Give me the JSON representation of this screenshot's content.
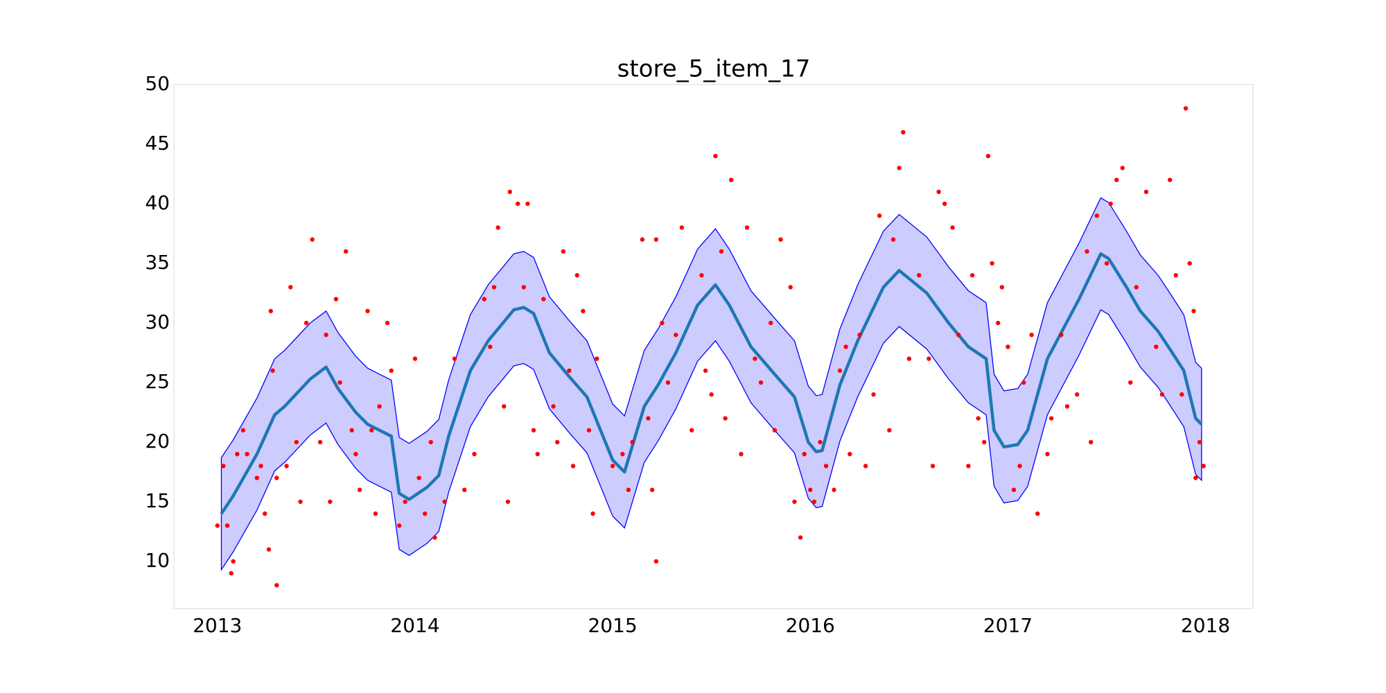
{
  "chart_data": {
    "type": "line",
    "title": "store_5_item_17",
    "xlim": [
      2012.78,
      2018.24
    ],
    "ylim": [
      6.05,
      50
    ],
    "xticks": [
      2013,
      2014,
      2015,
      2016,
      2017,
      2018
    ],
    "yticks": [
      10,
      15,
      20,
      25,
      30,
      35,
      40,
      45,
      50
    ],
    "x": [
      2013.02,
      2013.08,
      2013.2,
      2013.29,
      2013.34,
      2013.47,
      2013.55,
      2013.61,
      2013.7,
      2013.76,
      2013.88,
      2013.92,
      2013.97,
      2014.06,
      2014.12,
      2014.17,
      2014.28,
      2014.37,
      2014.5,
      2014.55,
      2014.6,
      2014.68,
      2014.78,
      2014.87,
      2015.0,
      2015.06,
      2015.16,
      2015.23,
      2015.32,
      2015.43,
      2015.52,
      2015.59,
      2015.7,
      2015.83,
      2015.92,
      2015.99,
      2016.03,
      2016.06,
      2016.15,
      2016.24,
      2016.37,
      2016.45,
      2016.59,
      2016.7,
      2016.8,
      2016.89,
      2016.93,
      2016.98,
      2017.05,
      2017.1,
      2017.2,
      2017.36,
      2017.47,
      2017.51,
      2017.6,
      2017.67,
      2017.76,
      2017.82,
      2017.89,
      2017.95,
      2017.98
    ],
    "trend": {
      "color": "#1f77b4",
      "values": [
        14,
        15.5,
        19,
        22.3,
        23,
        25.3,
        26.3,
        24.5,
        22.5,
        21.5,
        20.5,
        15.7,
        15.2,
        16.2,
        17.2,
        20.5,
        26,
        28.5,
        31.1,
        31.3,
        30.8,
        27.5,
        25.5,
        23.8,
        18.5,
        17.5,
        23,
        24.8,
        27.5,
        31.5,
        33.2,
        31.5,
        28,
        25.5,
        23.8,
        20,
        19.2,
        19.3,
        24.8,
        28.5,
        33,
        34.4,
        32.5,
        30,
        28,
        27,
        21,
        19.6,
        19.8,
        21,
        27,
        32,
        35.8,
        35.4,
        33,
        31,
        29.3,
        27.8,
        26,
        22,
        21.5
      ]
    },
    "band": {
      "color": "#0000ff",
      "upper": [
        18.7,
        20.2,
        23.7,
        27,
        27.7,
        30,
        31,
        29.2,
        27.2,
        26.2,
        25.2,
        20.4,
        19.9,
        20.9,
        21.9,
        25.2,
        30.7,
        33.2,
        35.8,
        36,
        35.5,
        32.2,
        30.2,
        28.5,
        23.2,
        22.2,
        27.7,
        29.5,
        32.2,
        36.2,
        37.9,
        36.2,
        32.7,
        30.2,
        28.5,
        24.7,
        23.9,
        24,
        29.5,
        33.2,
        37.7,
        39.1,
        37.2,
        34.7,
        32.7,
        31.7,
        25.7,
        24.3,
        24.5,
        25.7,
        31.7,
        36.7,
        40.5,
        40.1,
        37.7,
        35.7,
        34,
        32.5,
        30.7,
        26.7,
        26.2
      ],
      "lower": [
        9.3,
        10.8,
        14.3,
        17.6,
        18.3,
        20.6,
        21.6,
        19.8,
        17.8,
        16.8,
        15.8,
        11,
        10.5,
        11.5,
        12.5,
        15.8,
        21.3,
        23.8,
        26.4,
        26.6,
        26.1,
        22.8,
        20.8,
        19.1,
        13.8,
        12.8,
        18.3,
        20.1,
        22.8,
        26.8,
        28.5,
        26.8,
        23.3,
        20.8,
        19.1,
        15.3,
        14.5,
        14.6,
        20.1,
        23.8,
        28.3,
        29.7,
        27.8,
        25.3,
        23.3,
        22.3,
        16.3,
        14.9,
        15.1,
        16.3,
        22.3,
        27.3,
        31.1,
        30.7,
        28.3,
        26.3,
        24.6,
        23.1,
        21.3,
        17.3,
        16.8
      ]
    },
    "points": {
      "color": "#ff0000",
      "x": [
        2013.0,
        2013.03,
        2013.05,
        2013.07,
        2013.08,
        2013.1,
        2013.13,
        2013.15,
        2013.2,
        2013.22,
        2013.24,
        2013.26,
        2013.27,
        2013.28,
        2013.3,
        2013.3,
        2013.35,
        2013.37,
        2013.4,
        2013.42,
        2013.45,
        2013.48,
        2013.52,
        2013.55,
        2013.57,
        2013.6,
        2013.62,
        2013.65,
        2013.68,
        2013.7,
        2013.72,
        2013.76,
        2013.78,
        2013.8,
        2013.82,
        2013.86,
        2013.88,
        2013.92,
        2013.95,
        2014.0,
        2014.02,
        2014.05,
        2014.08,
        2014.1,
        2014.15,
        2014.2,
        2014.25,
        2014.3,
        2014.35,
        2014.38,
        2014.4,
        2014.42,
        2014.45,
        2014.47,
        2014.48,
        2014.52,
        2014.55,
        2014.57,
        2014.6,
        2014.62,
        2014.65,
        2014.7,
        2014.72,
        2014.75,
        2014.78,
        2014.8,
        2014.82,
        2014.85,
        2014.88,
        2014.9,
        2014.92,
        2015.0,
        2015.05,
        2015.08,
        2015.1,
        2015.15,
        2015.18,
        2015.2,
        2015.22,
        2015.22,
        2015.25,
        2015.28,
        2015.32,
        2015.35,
        2015.4,
        2015.45,
        2015.47,
        2015.5,
        2015.52,
        2015.55,
        2015.57,
        2015.6,
        2015.65,
        2015.68,
        2015.72,
        2015.75,
        2015.8,
        2015.82,
        2015.85,
        2015.9,
        2015.92,
        2015.95,
        2015.97,
        2016.0,
        2016.02,
        2016.05,
        2016.08,
        2016.12,
        2016.15,
        2016.18,
        2016.2,
        2016.25,
        2016.28,
        2016.32,
        2016.35,
        2016.4,
        2016.42,
        2016.45,
        2016.47,
        2016.5,
        2016.55,
        2016.6,
        2016.62,
        2016.65,
        2016.68,
        2016.72,
        2016.75,
        2016.8,
        2016.82,
        2016.85,
        2016.88,
        2016.9,
        2016.92,
        2016.95,
        2016.97,
        2017.0,
        2017.03,
        2017.06,
        2017.08,
        2017.12,
        2017.15,
        2017.2,
        2017.22,
        2017.27,
        2017.3,
        2017.35,
        2017.4,
        2017.42,
        2017.45,
        2017.5,
        2017.52,
        2017.55,
        2017.58,
        2017.62,
        2017.65,
        2017.7,
        2017.75,
        2017.78,
        2017.82,
        2017.85,
        2017.88,
        2017.9,
        2017.92,
        2017.94,
        2017.95,
        2017.97,
        2017.99
      ],
      "values": [
        13,
        18,
        13,
        9,
        10,
        19,
        21,
        19,
        17,
        18,
        14,
        11,
        31,
        26,
        17,
        8,
        18,
        33,
        20,
        15,
        30,
        37,
        20,
        29,
        15,
        32,
        25,
        36,
        21,
        19,
        16,
        31,
        21,
        14,
        23,
        30,
        26,
        13,
        15,
        27,
        17,
        14,
        20,
        12,
        15,
        27,
        16,
        19,
        32,
        28,
        33,
        38,
        23,
        15,
        41,
        40,
        33,
        40,
        21,
        19,
        32,
        23,
        20,
        36,
        26,
        18,
        34,
        31,
        21,
        14,
        27,
        18,
        19,
        16,
        20,
        37,
        22,
        16,
        37,
        10,
        30,
        25,
        29,
        38,
        21,
        34,
        26,
        24,
        44,
        36,
        22,
        42,
        19,
        38,
        27,
        25,
        30,
        21,
        37,
        33,
        15,
        12,
        19,
        16,
        15,
        20,
        18,
        16,
        26,
        28,
        19,
        29,
        18,
        24,
        39,
        21,
        37,
        43,
        46,
        27,
        34,
        27,
        18,
        41,
        40,
        38,
        29,
        18,
        34,
        22,
        20,
        44,
        35,
        30,
        33,
        28,
        16,
        18,
        25,
        29,
        14,
        19,
        22,
        29,
        23,
        24,
        36,
        20,
        39,
        35,
        40,
        42,
        43,
        25,
        33,
        41,
        28,
        24,
        42,
        34,
        24,
        48,
        35,
        31,
        17,
        20,
        18
      ]
    }
  }
}
